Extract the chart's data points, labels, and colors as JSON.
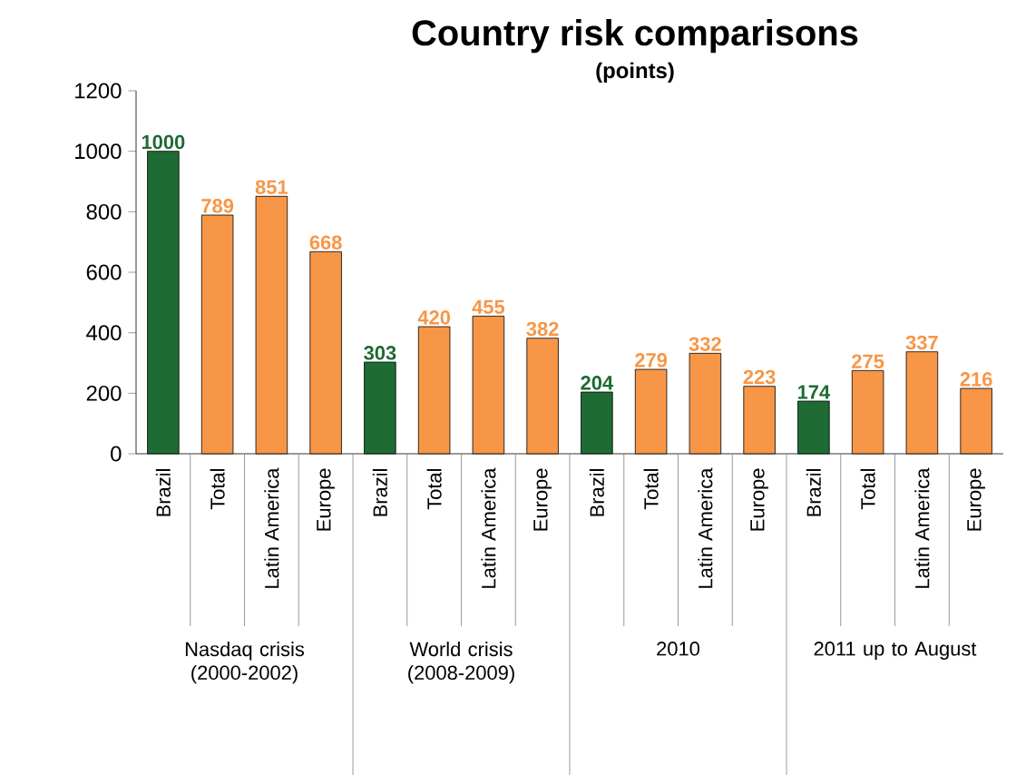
{
  "chart_data": {
    "type": "bar",
    "title": "Country risk comparisons",
    "subtitle": "(points)",
    "categories": [
      "Brazil",
      "Total",
      "Latin America",
      "Europe",
      "Brazil",
      "Total",
      "Latin America",
      "Europe",
      "Brazil",
      "Total",
      "Latin America",
      "Europe",
      "Brazil",
      "Total",
      "Latin America",
      "Europe"
    ],
    "values": [
      1000,
      789,
      851,
      668,
      303,
      420,
      455,
      382,
      204,
      279,
      332,
      223,
      174,
      275,
      337,
      216
    ],
    "colors": [
      "#1e6b33",
      "#f79646",
      "#f79646",
      "#f79646",
      "#1e6b33",
      "#f79646",
      "#f79646",
      "#f79646",
      "#1e6b33",
      "#f79646",
      "#f79646",
      "#f79646",
      "#1e6b33",
      "#f79646",
      "#f79646",
      "#f79646"
    ],
    "ylim": [
      0,
      1200
    ],
    "yticks": [
      0,
      200,
      400,
      600,
      800,
      1000,
      1200
    ],
    "data_labels": true,
    "annotations": [
      "Nasdaq crisis (2000-2002)",
      "World crisis (2008-2009)",
      "2010",
      "2011 up to August"
    ]
  }
}
